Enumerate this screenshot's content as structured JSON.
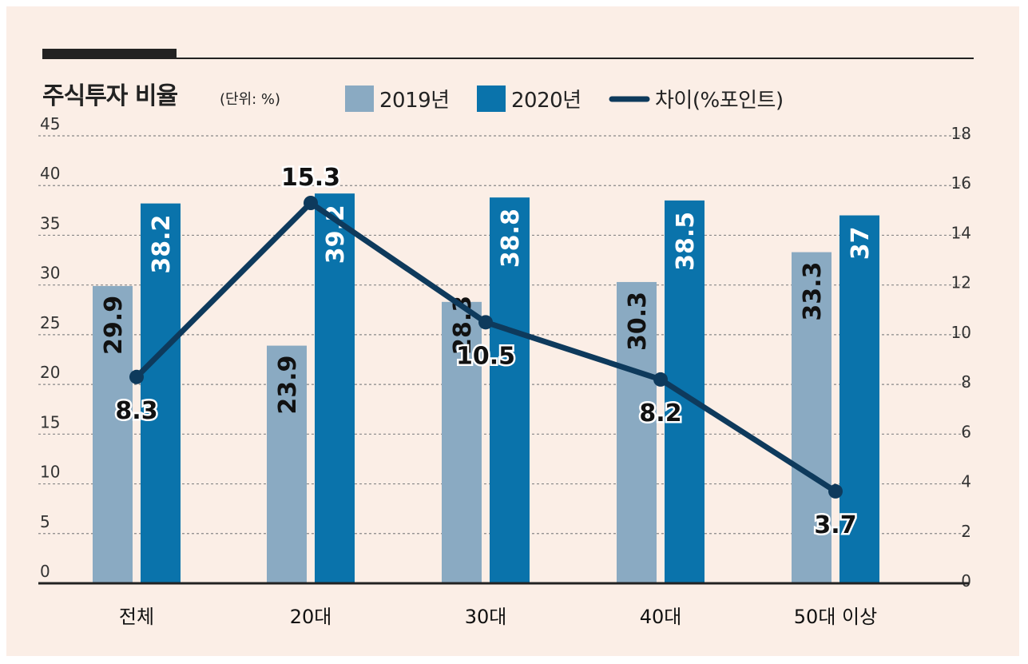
{
  "colors": {
    "background": "#fbeee6",
    "bar2019": "#8aaac2",
    "bar2020": "#0a73ab",
    "line": "#0e3a5c",
    "grid": "#888888"
  },
  "chart_data": {
    "type": "bar+line",
    "title": "주식투자 비율",
    "unit": "(단위: %)",
    "categories": [
      "전체",
      "20대",
      "30대",
      "40대",
      "50대 이상"
    ],
    "series": [
      {
        "name": "2019년",
        "type": "bar",
        "axis": "left",
        "values": [
          29.9,
          23.9,
          28.3,
          30.3,
          33.3
        ],
        "labels": [
          "29.9",
          "23.9",
          "28.3",
          "30.3",
          "33.3"
        ]
      },
      {
        "name": "2020년",
        "type": "bar",
        "axis": "left",
        "values": [
          38.2,
          39.2,
          38.8,
          38.5,
          37
        ],
        "labels": [
          "38.2",
          "39.2",
          "38.8",
          "38.5",
          "37"
        ]
      },
      {
        "name": "차이(%포인트)",
        "type": "line",
        "axis": "right",
        "values": [
          8.3,
          15.3,
          10.5,
          8.2,
          3.7
        ],
        "labels": [
          "8.3",
          "15.3",
          "10.5",
          "8.2",
          "3.7"
        ]
      }
    ],
    "left_axis": {
      "min": 0,
      "max": 45,
      "step": 5,
      "ticks": [
        "0",
        "5",
        "10",
        "15",
        "20",
        "25",
        "30",
        "35",
        "40",
        "45"
      ]
    },
    "right_axis": {
      "min": 0,
      "max": 18,
      "step": 2,
      "ticks": [
        "0",
        "2",
        "4",
        "6",
        "8",
        "10",
        "12",
        "14",
        "16",
        "18"
      ]
    },
    "grid": true,
    "legend_position": "top"
  }
}
